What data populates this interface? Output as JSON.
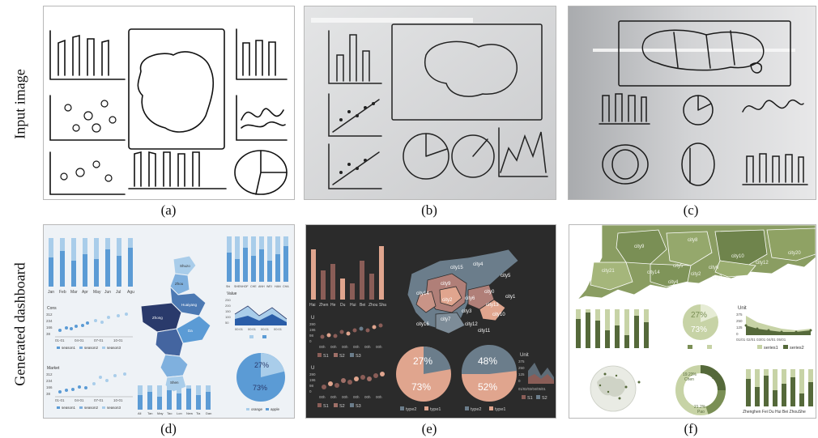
{
  "rows": {
    "top_label": "Input image",
    "bottom_label": "Generated dashboard"
  },
  "captions": [
    "(a)",
    "(b)",
    "(c)",
    "(d)",
    "(e)",
    "(f)"
  ],
  "panel_d": {
    "x_months": [
      "Jan",
      "Feb",
      "Mar",
      "Apr",
      "May",
      "Jun",
      "Jul",
      "Agu"
    ],
    "x_cities": [
      "Shi",
      "SHEN",
      "HOF",
      "CHE",
      "ANH",
      "WEI",
      "HAN",
      "CHA"
    ],
    "scatter1_title": "Cons",
    "scatter1_y": [
      "312",
      "234",
      "166",
      "38"
    ],
    "scatter1_x": [
      "01-01",
      "04-01",
      "07-01",
      "10-01"
    ],
    "scatter2_title": "Market",
    "scatter2_y": [
      "312",
      "234",
      "166",
      "38"
    ],
    "scatter2_x": [
      "01-01",
      "04-01",
      "07-01",
      "10-01"
    ],
    "legend_seasons": [
      "season1",
      "season2",
      "season3"
    ],
    "area_title": "Value",
    "area_y": [
      "250",
      "200",
      "150",
      "100",
      "50"
    ],
    "area_x": [
      "00:01",
      "00:01",
      "00:01",
      "00:01"
    ],
    "map_labels": [
      "Shuzo",
      "Zhou",
      "Huaiyang",
      "Zhong",
      "Da",
      "Shen"
    ],
    "bottom_bar_x": [
      "All",
      "Tan",
      "May",
      "Tao",
      "Lon",
      "New",
      "Tia",
      "Dan"
    ],
    "pie_values": [
      "27%",
      "73%"
    ],
    "pie_legend": [
      "orange",
      "apple"
    ]
  },
  "panel_e": {
    "bar_x": [
      "Hai",
      "Zhen",
      "He",
      "Du",
      "Hui",
      "Bei",
      "Zhou",
      "Sha"
    ],
    "scatter_unit": "U",
    "scatter1_y": [
      "390",
      "196",
      "98",
      "0"
    ],
    "scatter1_x": [
      "00h",
      "00h",
      "00h",
      "00h",
      "00h",
      "00h"
    ],
    "scatter2_y": [
      "390",
      "196",
      "98",
      "0"
    ],
    "scatter2_x": [
      "00h",
      "00h",
      "00h",
      "00h",
      "00h",
      "00h"
    ],
    "legend_s": [
      "S1",
      "S2",
      "S3"
    ],
    "map_labels": [
      "city15",
      "city4",
      "city5",
      "city0",
      "city14",
      "city9",
      "city1",
      "city6",
      "city2",
      "city3",
      "city13",
      "city10",
      "city16",
      "city7",
      "city12",
      "city11"
    ],
    "pie1": [
      "27%",
      "73%"
    ],
    "pie2": [
      "48%",
      "52%"
    ],
    "pie_legend": [
      "type2",
      "type1",
      "type2",
      "type1"
    ],
    "area_unit": "Unit",
    "area_y": [
      "375",
      "250",
      "125",
      "0"
    ],
    "area_x": "01/02/03/04/05/01",
    "area_legend": [
      "S1",
      "S2"
    ]
  },
  "panel_f": {
    "map_labels": [
      "city9",
      "city8",
      "city10",
      "city12",
      "city20",
      "city21",
      "city5",
      "city6",
      "city14",
      "city2",
      "city4",
      "city7"
    ],
    "pie_values": [
      "27%",
      "73%"
    ],
    "line_unit": "Unit",
    "line_y": [
      "375",
      "250",
      "125",
      "0"
    ],
    "line_x": "01/01 02/01 03/01 04/01 05/01",
    "line_legend": [
      "series1",
      "series2"
    ],
    "donut_labels": [
      "19.23%",
      "Chen",
      "7.4%",
      "Du",
      "21.2%",
      "Pao"
    ],
    "bar_x": "Zhenghen Fei Du Hui Bei ZhouShe"
  },
  "colors": {
    "light_blue": "#a9cdea",
    "mid_blue": "#5b9bd5",
    "dark_navy": "#2a3a6b",
    "e_bg": "#2b2b2b",
    "e_peach": "#e0a58e",
    "e_brown": "#8a5d57",
    "e_slate": "#6b7d8b",
    "f_olive": "#7a8f55",
    "f_light": "#c7d3a6",
    "f_dark": "#55693a"
  }
}
